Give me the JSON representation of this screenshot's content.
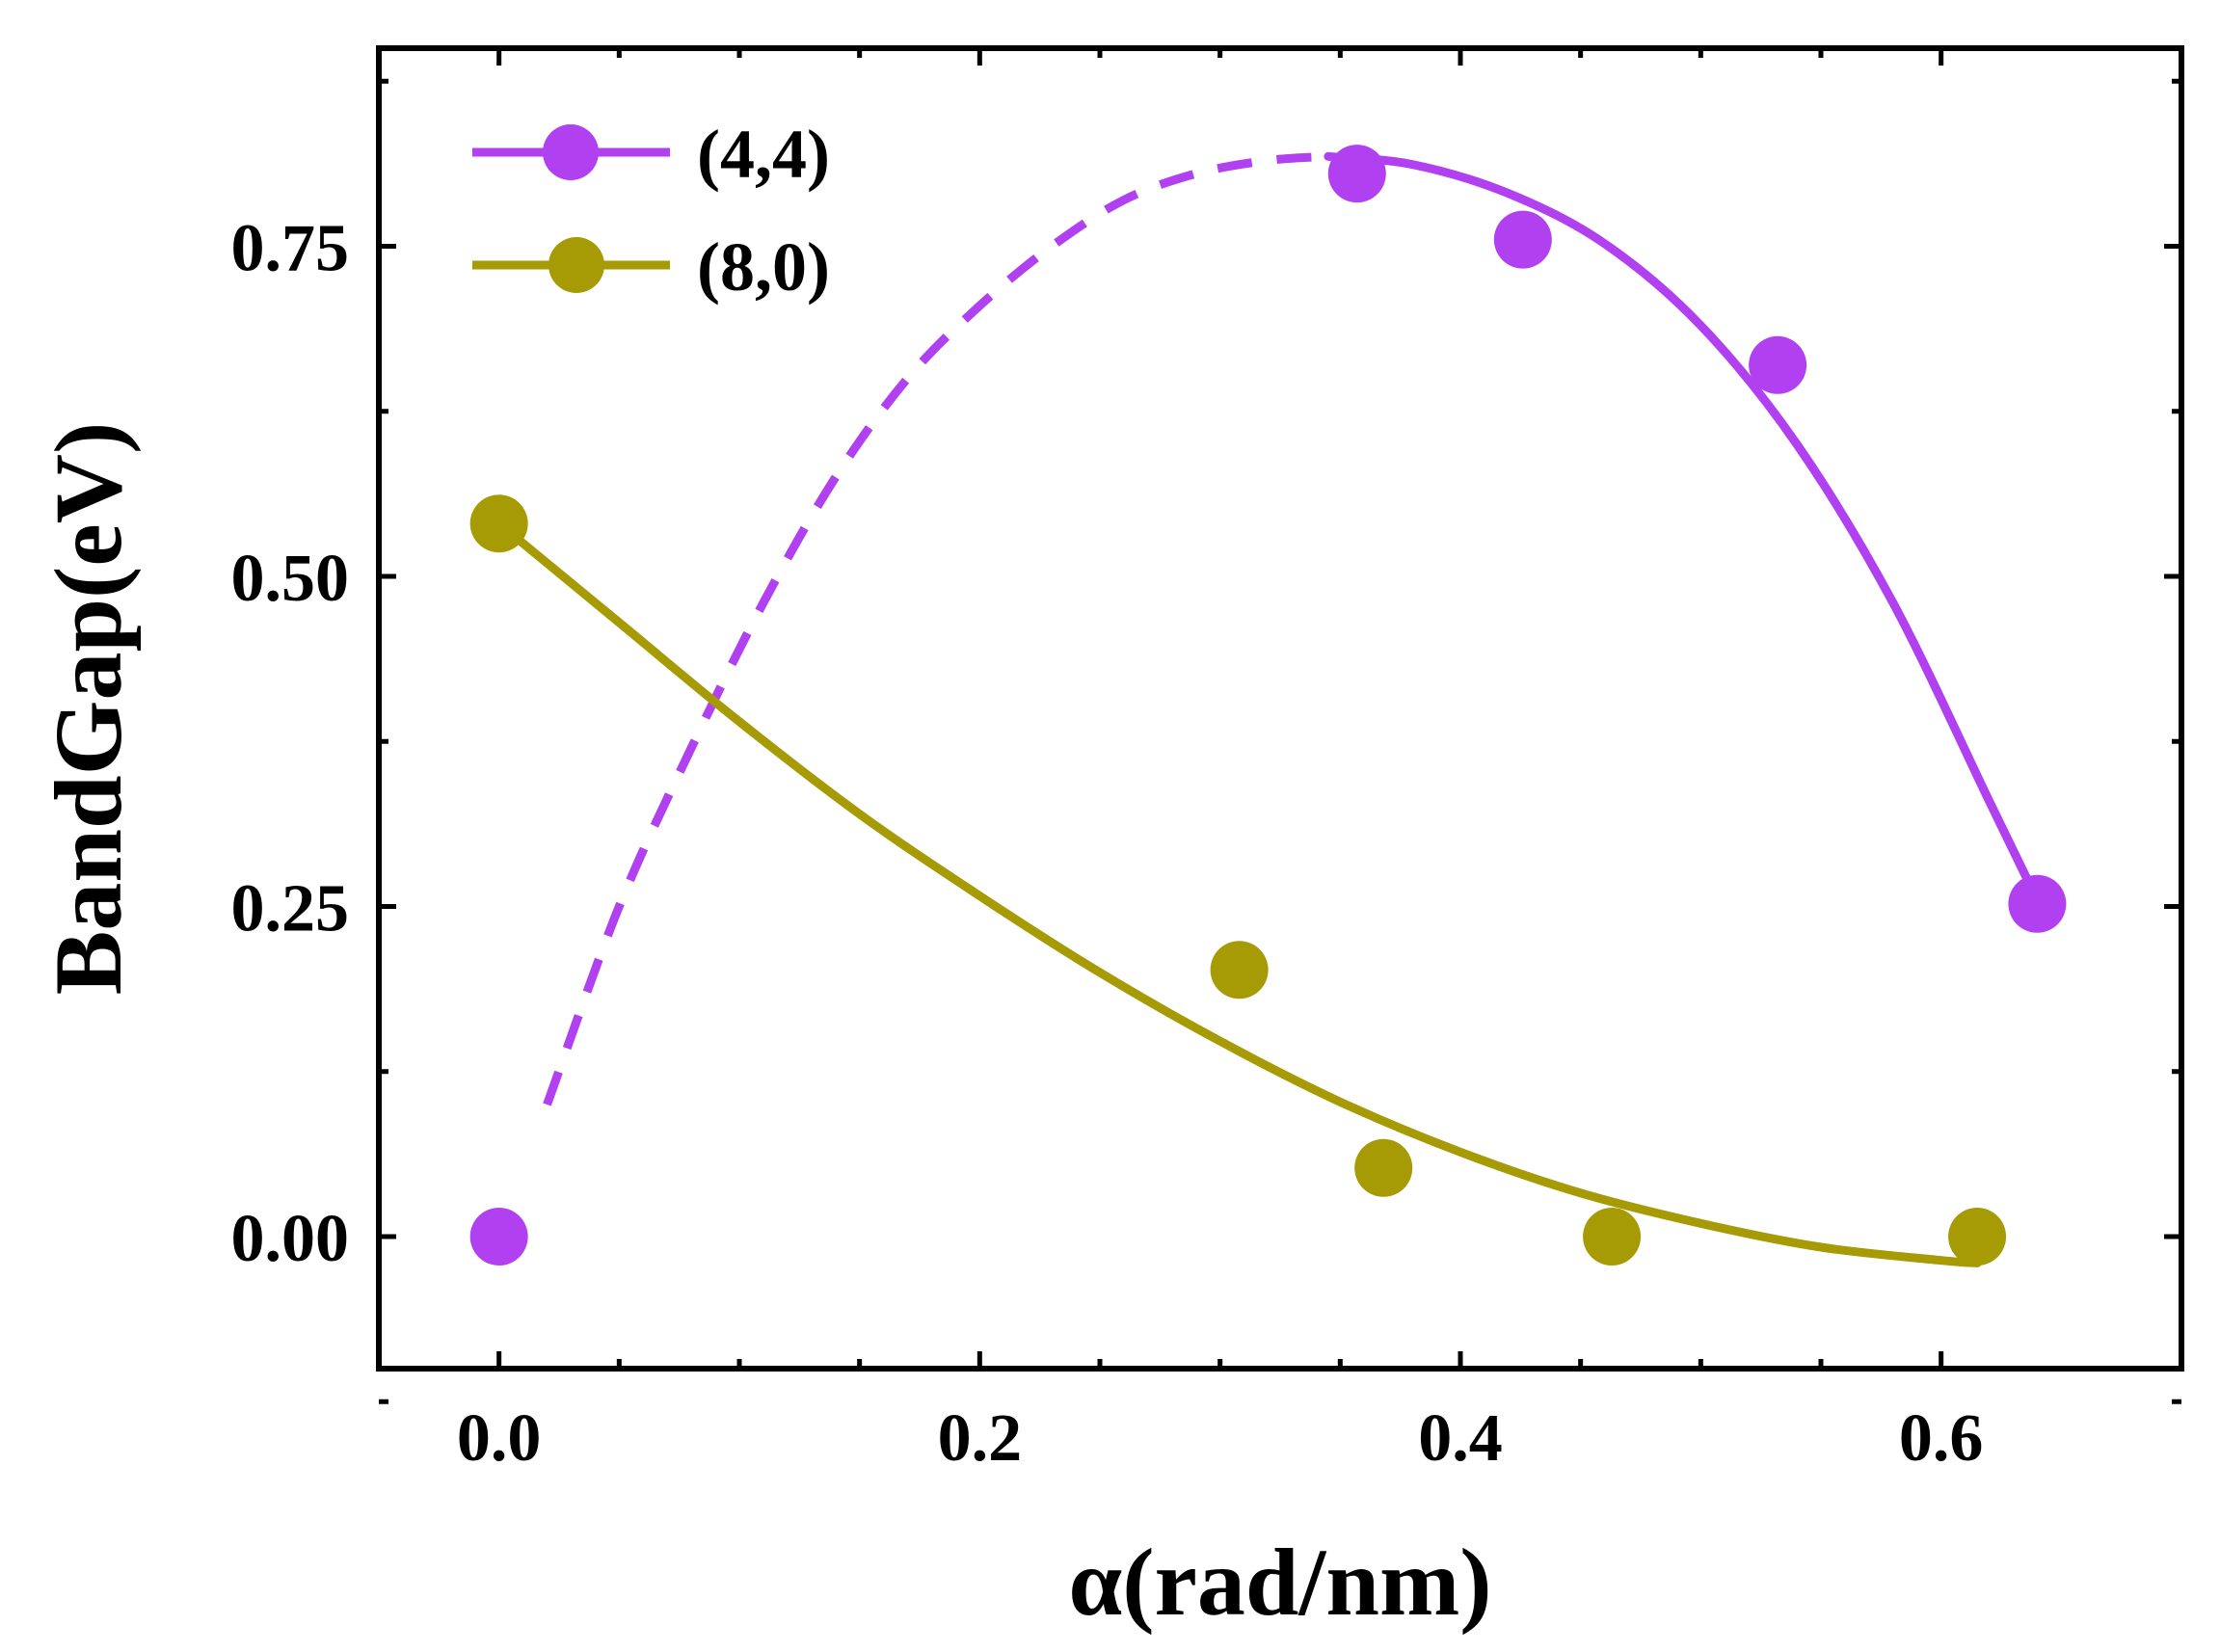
{
  "chart_data": {
    "type": "scatter",
    "title": "",
    "xlabel": "α(rad/nm)",
    "ylabel": "BandGap(eV)",
    "xlim": [
      -0.05,
      0.7
    ],
    "ylim": [
      -0.1,
      0.9
    ],
    "x_ticks": [
      0.0,
      0.2,
      0.4,
      0.6
    ],
    "x_tick_labels": [
      "0.0",
      "0.2",
      "0.4",
      "0.6"
    ],
    "y_ticks": [
      0.0,
      0.25,
      0.5,
      0.75
    ],
    "y_tick_labels": [
      "0.00",
      "0.25",
      "0.50",
      "0.75"
    ],
    "grid": false,
    "legend_position": "top-left",
    "series": [
      {
        "name": "(4,4)",
        "color": "#b040f0",
        "points": {
          "x": [
            0.0,
            0.357,
            0.426,
            0.532,
            0.64
          ],
          "y": [
            0.0,
            0.805,
            0.755,
            0.66,
            0.252
          ]
        },
        "fit": {
          "dashed": {
            "x": [
              0.02,
              0.05,
              0.08,
              0.11,
              0.14,
              0.17,
              0.2,
              0.23,
              0.26,
              0.29,
              0.32,
              0.345
            ],
            "y": [
              0.1,
              0.25,
              0.37,
              0.48,
              0.575,
              0.65,
              0.705,
              0.75,
              0.785,
              0.805,
              0.815,
              0.818
            ]
          },
          "solid": {
            "x": [
              0.345,
              0.38,
              0.42,
              0.46,
              0.5,
              0.54,
              0.58,
              0.62,
              0.64
            ],
            "y": [
              0.818,
              0.812,
              0.79,
              0.752,
              0.69,
              0.6,
              0.48,
              0.33,
              0.255
            ]
          }
        }
      },
      {
        "name": "(8,0)",
        "color": "#a69a05",
        "points": {
          "x": [
            0.0,
            0.308,
            0.368,
            0.463,
            0.615
          ],
          "y": [
            0.54,
            0.202,
            0.052,
            0.0,
            0.0
          ]
        },
        "fit": {
          "solid": {
            "x": [
              0.0,
              0.05,
              0.1,
              0.15,
              0.2,
              0.25,
              0.3,
              0.35,
              0.4,
              0.45,
              0.5,
              0.55,
              0.6,
              0.615
            ],
            "y": [
              0.54,
              0.465,
              0.39,
              0.32,
              0.258,
              0.2,
              0.148,
              0.102,
              0.064,
              0.033,
              0.01,
              -0.008,
              -0.018,
              -0.02
            ]
          }
        }
      }
    ]
  }
}
